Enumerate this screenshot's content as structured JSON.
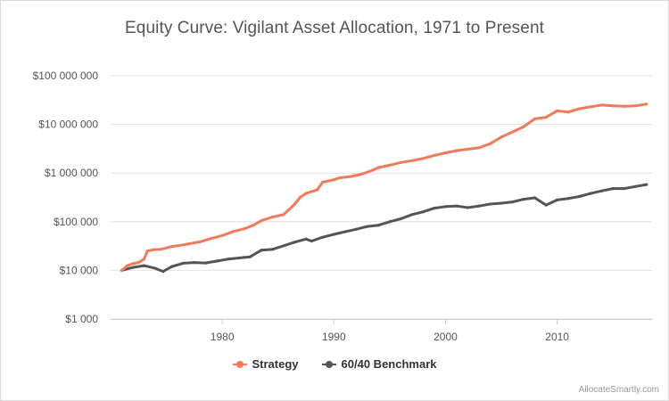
{
  "chart_data": {
    "type": "line",
    "title": "Equity Curve: Vigilant Asset Allocation, 1971 to Present",
    "xlabel": "",
    "ylabel": "",
    "yscale": "log",
    "ylim": [
      1000,
      100000000
    ],
    "xlim": [
      1970,
      2018.5
    ],
    "y_ticks": [
      1000,
      10000,
      100000,
      1000000,
      10000000,
      100000000
    ],
    "y_tick_labels": [
      "$1 000",
      "$10 000",
      "$100 000",
      "$1 000 000",
      "$10 000 000",
      "$100 000 000"
    ],
    "x_ticks": [
      1980,
      1990,
      2000,
      2010
    ],
    "x_tick_labels": [
      "1980",
      "1990",
      "2000",
      "2010"
    ],
    "grid": "horizontal",
    "legend_position": "bottom",
    "series": [
      {
        "name": "Strategy",
        "color": "#f07a5a",
        "points": [
          [
            1971.0,
            10000
          ],
          [
            1971.5,
            12500
          ],
          [
            1972.0,
            13800
          ],
          [
            1972.5,
            14500
          ],
          [
            1973.0,
            17000
          ],
          [
            1973.3,
            25000
          ],
          [
            1973.8,
            26500
          ],
          [
            1974.5,
            27000
          ],
          [
            1975.0,
            29000
          ],
          [
            1975.5,
            31000
          ],
          [
            1976.0,
            32000
          ],
          [
            1977.0,
            35000
          ],
          [
            1978.0,
            38500
          ],
          [
            1979.0,
            45000
          ],
          [
            1980.0,
            52000
          ],
          [
            1981.0,
            63000
          ],
          [
            1982.0,
            72000
          ],
          [
            1982.8,
            85000
          ],
          [
            1983.5,
            105000
          ],
          [
            1984.5,
            125000
          ],
          [
            1985.5,
            140000
          ],
          [
            1986.5,
            230000
          ],
          [
            1987.0,
            320000
          ],
          [
            1987.5,
            380000
          ],
          [
            1988.5,
            450000
          ],
          [
            1989.0,
            650000
          ],
          [
            1990.0,
            730000
          ],
          [
            1990.5,
            800000
          ],
          [
            1991.5,
            850000
          ],
          [
            1992.5,
            950000
          ],
          [
            1993.5,
            1150000
          ],
          [
            1994.0,
            1300000
          ],
          [
            1995.0,
            1450000
          ],
          [
            1996.0,
            1650000
          ],
          [
            1997.0,
            1800000
          ],
          [
            1998.0,
            2000000
          ],
          [
            1999.0,
            2300000
          ],
          [
            2000.0,
            2600000
          ],
          [
            2001.0,
            2900000
          ],
          [
            2002.0,
            3100000
          ],
          [
            2003.0,
            3300000
          ],
          [
            2004.0,
            4000000
          ],
          [
            2005.0,
            5500000
          ],
          [
            2006.0,
            7000000
          ],
          [
            2007.0,
            9000000
          ],
          [
            2008.0,
            13000000
          ],
          [
            2009.0,
            14000000
          ],
          [
            2010.0,
            19000000
          ],
          [
            2011.0,
            18000000
          ],
          [
            2012.0,
            21000000
          ],
          [
            2013.0,
            23000000
          ],
          [
            2014.0,
            25000000
          ],
          [
            2015.0,
            24000000
          ],
          [
            2016.0,
            23500000
          ],
          [
            2017.0,
            24000000
          ],
          [
            2018.0,
            26000000
          ]
        ]
      },
      {
        "name": "60/40 Benchmark",
        "color": "#555555",
        "points": [
          [
            1971.0,
            10000
          ],
          [
            1972.0,
            11500
          ],
          [
            1973.0,
            12500
          ],
          [
            1974.0,
            11000
          ],
          [
            1974.7,
            9500
          ],
          [
            1975.5,
            12000
          ],
          [
            1976.5,
            14000
          ],
          [
            1977.5,
            14500
          ],
          [
            1978.5,
            14200
          ],
          [
            1979.5,
            15500
          ],
          [
            1980.5,
            17000
          ],
          [
            1981.5,
            18000
          ],
          [
            1982.5,
            19000
          ],
          [
            1983.5,
            26000
          ],
          [
            1984.5,
            27000
          ],
          [
            1985.5,
            32000
          ],
          [
            1986.5,
            38000
          ],
          [
            1987.5,
            44000
          ],
          [
            1988.0,
            40000
          ],
          [
            1989.0,
            48000
          ],
          [
            1990.0,
            55000
          ],
          [
            1991.0,
            62000
          ],
          [
            1992.0,
            70000
          ],
          [
            1993.0,
            80000
          ],
          [
            1994.0,
            85000
          ],
          [
            1995.0,
            100000
          ],
          [
            1996.0,
            115000
          ],
          [
            1997.0,
            140000
          ],
          [
            1998.0,
            160000
          ],
          [
            1999.0,
            190000
          ],
          [
            2000.0,
            205000
          ],
          [
            2001.0,
            210000
          ],
          [
            2002.0,
            195000
          ],
          [
            2003.0,
            210000
          ],
          [
            2004.0,
            230000
          ],
          [
            2005.0,
            240000
          ],
          [
            2006.0,
            255000
          ],
          [
            2007.0,
            290000
          ],
          [
            2008.0,
            310000
          ],
          [
            2009.0,
            220000
          ],
          [
            2010.0,
            280000
          ],
          [
            2011.0,
            300000
          ],
          [
            2012.0,
            330000
          ],
          [
            2013.0,
            380000
          ],
          [
            2014.0,
            430000
          ],
          [
            2015.0,
            480000
          ],
          [
            2016.0,
            480000
          ],
          [
            2017.0,
            530000
          ],
          [
            2018.0,
            580000
          ]
        ]
      }
    ]
  },
  "credit": "AllocateSmartly.com"
}
